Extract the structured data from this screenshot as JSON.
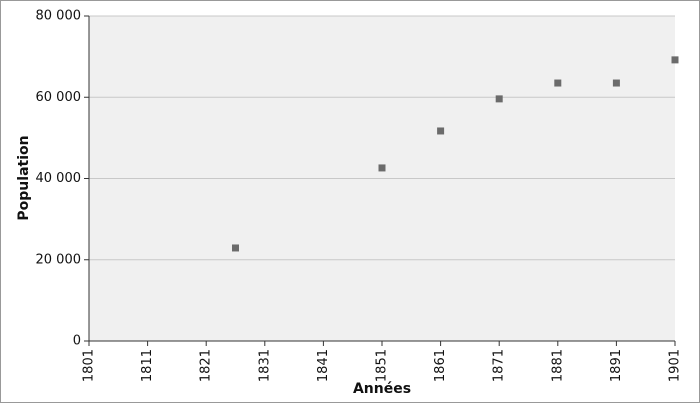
{
  "chart_data": {
    "type": "scatter",
    "x_label": "Années",
    "y_label": "Population",
    "x": [
      1826,
      1851,
      1861,
      1871,
      1881,
      1891,
      1901
    ],
    "values": [
      22900,
      42600,
      51700,
      59600,
      63500,
      63500,
      69200
    ],
    "color": "#6b6b6b",
    "xlim": [
      1801,
      1901
    ],
    "xticks": [
      1801,
      1811,
      1821,
      1831,
      1841,
      1851,
      1861,
      1871,
      1881,
      1891,
      1901
    ],
    "ylim": [
      0,
      80000
    ],
    "yticks": [
      0,
      {
        "value": 20000,
        "label": "20 000"
      },
      {
        "value": 40000,
        "label": "40 000"
      },
      {
        "value": 60000,
        "label": "60 000"
      },
      {
        "value": 80000,
        "label": "80 000"
      }
    ],
    "grid": true
  }
}
